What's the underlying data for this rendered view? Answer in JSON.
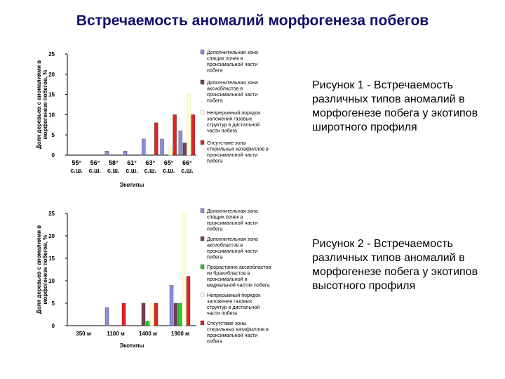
{
  "title": "Встречаемость аномалий морфогенеза побегов",
  "captions": {
    "figure1": "Рисунок 1 - Встречаемость различных типов аномалий в морфогенезе побега у экотипов широтного профиля",
    "figure2": "Рисунок 2 - Встречаемость различных типов аномалий в морфогенезе побега у экотипов высотного профиля"
  },
  "chart_data": [
    {
      "type": "bar",
      "ylabel": "Доля деревьев с аномалиями в морфогенезе побегов, %",
      "xlabel": "Экотипы",
      "ylim": [
        0,
        25
      ],
      "yticks": [
        0,
        5,
        10,
        15,
        20,
        25
      ],
      "categories": [
        "55° с.ш.",
        "56° с.ш.",
        "58° с.ш.",
        "61° с.ш.",
        "63° с.ш.",
        "65° с.ш.",
        "66° с.ш."
      ],
      "legend_position": "right",
      "series": [
        {
          "name": "Дополнительная зона спящих почек в проксимальной части побега",
          "color": "#8b8fe0",
          "values": [
            0,
            0,
            1,
            1,
            4,
            4,
            6
          ]
        },
        {
          "name": "Дополнительная зона аксиобластов в проксимальной части побега",
          "color": "#7a3b55",
          "values": [
            0,
            0,
            0,
            0,
            0,
            0,
            3
          ]
        },
        {
          "name": "Непрерывный порядок заложения газовых структур в дистальной части побега",
          "color": "#ffffd8",
          "values": [
            0,
            0,
            0,
            0,
            0,
            2,
            15
          ]
        },
        {
          "name": "Отсутствие зоны стерильных катафиллов в проксимальной части побега",
          "color": "#e8201e",
          "values": [
            0,
            0,
            0,
            0,
            8,
            10,
            10
          ]
        }
      ]
    },
    {
      "type": "bar",
      "ylabel": "Доля деревьев с аномалиями в морфогенезе побегов, %",
      "xlabel": "Экотипы",
      "ylim": [
        0,
        25
      ],
      "yticks": [
        0,
        5,
        10,
        15,
        20,
        25
      ],
      "categories": [
        "350 м",
        "1100 м",
        "1400 м",
        "1900 м"
      ],
      "legend_position": "right",
      "series": [
        {
          "name": "Дополнительная зона спящих почек в проксимальной части побега",
          "color": "#8b8fe0",
          "values": [
            0,
            4,
            0,
            9
          ]
        },
        {
          "name": "Дополнительная зона аксиобластов в проксимальной части побега",
          "color": "#7a3b55",
          "values": [
            0,
            0,
            5,
            5
          ]
        },
        {
          "name": "Прорастание аксиобластов из брахибластов в проксимальной и медиальной частях побега",
          "color": "#22cc33",
          "values": [
            0,
            0,
            1,
            5
          ]
        },
        {
          "name": "Непрерывный порядок заложения газовых структур в дистальной части побега",
          "color": "#ffffd8",
          "values": [
            0,
            0,
            5,
            25
          ]
        },
        {
          "name": "Отсутствие зоны стерильных катафиллов в проксимальной части побега",
          "color": "#e8201e",
          "values": [
            0,
            5,
            5,
            11
          ]
        }
      ]
    }
  ]
}
